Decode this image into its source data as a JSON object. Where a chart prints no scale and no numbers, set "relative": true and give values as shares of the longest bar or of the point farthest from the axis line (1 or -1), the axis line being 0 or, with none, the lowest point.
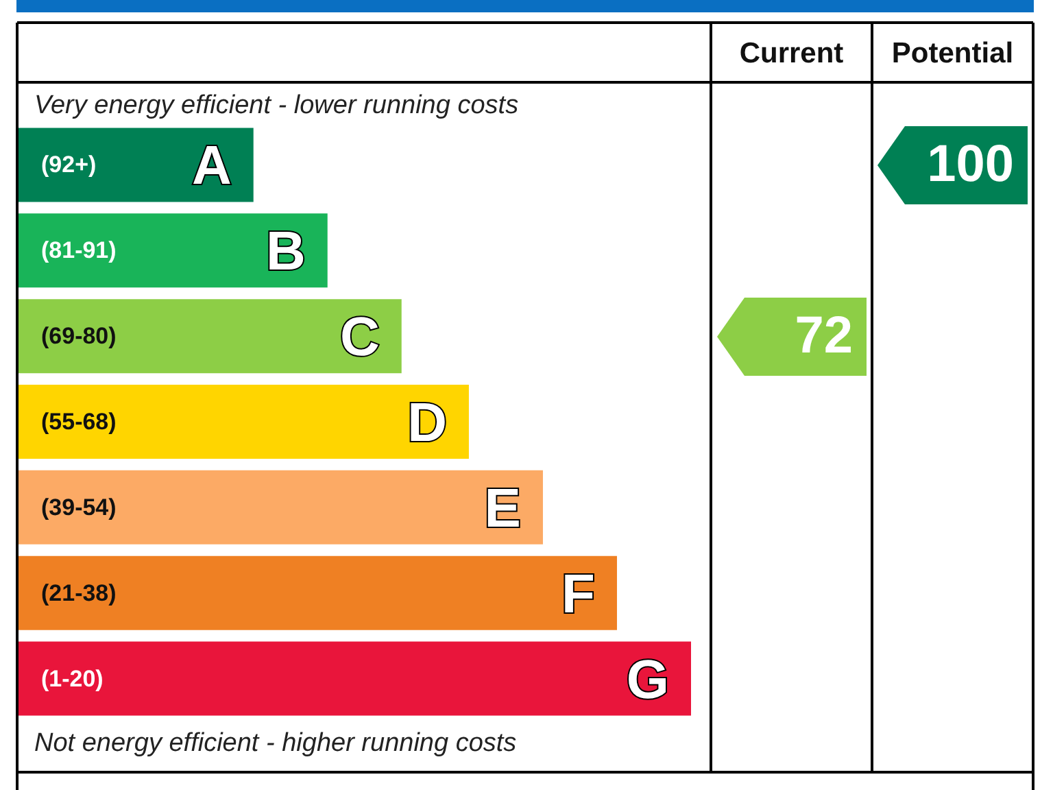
{
  "chart_data": {
    "type": "bar",
    "orientation": "horizontal",
    "relative": true,
    "categories": [
      "A",
      "B",
      "C",
      "D",
      "E",
      "F",
      "G"
    ],
    "values": [
      0.35,
      0.46,
      0.57,
      0.67,
      0.78,
      0.89,
      1
    ],
    "colors": [
      "#008054",
      "#19b459",
      "#8dce46",
      "#ffd500",
      "#fcaa65",
      "#ef8023",
      "#e9153b"
    ],
    "annotations": [
      "Very energy efficient - lower running costs",
      "Not energy efficient - higher running costs",
      "Current",
      "Potential",
      "72",
      "100",
      "(92+)",
      "(81-91)",
      "(69-80)",
      "(55-68)",
      "(39-54)",
      "(21-38)",
      "(1-20)"
    ]
  }
}
